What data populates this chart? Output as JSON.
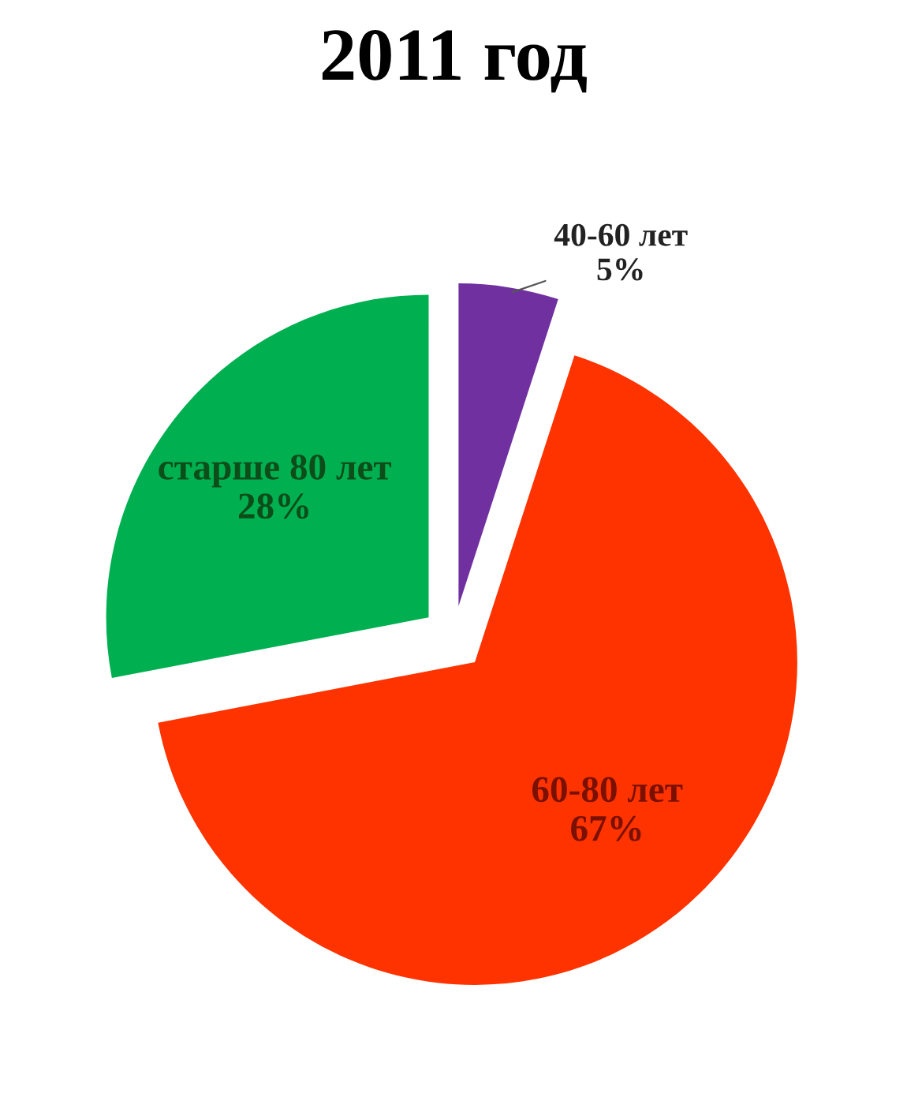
{
  "chart_data": {
    "type": "pie",
    "title": "2011 год",
    "categories": [
      "40-60 лет",
      "60-80 лет",
      "старше 80 лет"
    ],
    "values": [
      5,
      67,
      28
    ],
    "value_labels": [
      "5%",
      "67%",
      "28%"
    ],
    "colors": [
      "#7030a0",
      "#ff3300",
      "#00b050"
    ]
  }
}
